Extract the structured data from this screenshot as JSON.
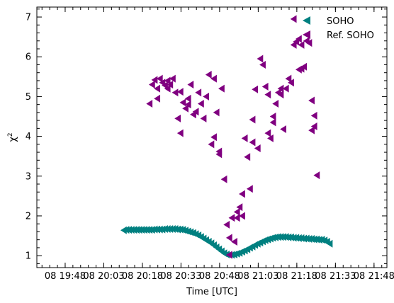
{
  "chart_data": {
    "type": "scatter",
    "title": "",
    "xlabel": "Time [UTC]",
    "ylabel": "χ",
    "ylabel_superscript": "2",
    "xlim": [
      "19:37",
      "21:53"
    ],
    "ylim": [
      0.7,
      7.25
    ],
    "x_tick_labels": [
      "08 19:48",
      "08 20:03",
      "08 20:18",
      "08 20:33",
      "08 20:48",
      "08 21:03",
      "08 21:18",
      "08 21:33",
      "08 21:48"
    ],
    "y_tick_labels": [
      "1",
      "2",
      "3",
      "4",
      "5",
      "6",
      "7"
    ],
    "legend_position": "top-right",
    "series": [
      {
        "name": "SOHO",
        "color": "#008080",
        "marker": "triangle-left",
        "points": [
          [
            "20:11",
            1.64
          ],
          [
            "20:12",
            1.65
          ],
          [
            "20:13",
            1.65
          ],
          [
            "20:14",
            1.65
          ],
          [
            "20:15",
            1.65
          ],
          [
            "20:16",
            1.65
          ],
          [
            "20:17",
            1.65
          ],
          [
            "20:18",
            1.65
          ],
          [
            "20:19",
            1.65
          ],
          [
            "20:20",
            1.65
          ],
          [
            "20:21",
            1.65
          ],
          [
            "20:22",
            1.65
          ],
          [
            "20:23",
            1.66
          ],
          [
            "20:24",
            1.66
          ],
          [
            "20:25",
            1.66
          ],
          [
            "20:26",
            1.66
          ],
          [
            "20:27",
            1.67
          ],
          [
            "20:28",
            1.67
          ],
          [
            "20:29",
            1.67
          ],
          [
            "20:30",
            1.67
          ],
          [
            "20:31",
            1.67
          ],
          [
            "20:32",
            1.66
          ],
          [
            "20:33",
            1.66
          ],
          [
            "20:34",
            1.65
          ],
          [
            "20:35",
            1.63
          ],
          [
            "20:36",
            1.61
          ],
          [
            "20:37",
            1.59
          ],
          [
            "20:38",
            1.57
          ],
          [
            "20:39",
            1.54
          ],
          [
            "20:40",
            1.51
          ],
          [
            "20:41",
            1.47
          ],
          [
            "20:42",
            1.43
          ],
          [
            "20:43",
            1.39
          ],
          [
            "20:44",
            1.35
          ],
          [
            "20:45",
            1.31
          ],
          [
            "20:46",
            1.26
          ],
          [
            "20:47",
            1.21
          ],
          [
            "20:48",
            1.16
          ],
          [
            "20:49",
            1.11
          ],
          [
            "20:50",
            1.06
          ],
          [
            "20:51",
            1.03
          ],
          [
            "20:52",
            1.02
          ],
          [
            "20:53",
            1.02
          ],
          [
            "20:54",
            1.03
          ],
          [
            "20:55",
            1.05
          ],
          [
            "20:56",
            1.07
          ],
          [
            "20:57",
            1.1
          ],
          [
            "20:58",
            1.13
          ],
          [
            "20:59",
            1.16
          ],
          [
            "21:00",
            1.2
          ],
          [
            "21:01",
            1.23
          ],
          [
            "21:02",
            1.27
          ],
          [
            "21:03",
            1.3
          ],
          [
            "21:04",
            1.33
          ],
          [
            "21:05",
            1.36
          ],
          [
            "21:06",
            1.39
          ],
          [
            "21:07",
            1.41
          ],
          [
            "21:08",
            1.43
          ],
          [
            "21:09",
            1.45
          ],
          [
            "21:10",
            1.46
          ],
          [
            "21:11",
            1.47
          ],
          [
            "21:12",
            1.47
          ],
          [
            "21:13",
            1.47
          ],
          [
            "21:14",
            1.47
          ],
          [
            "21:15",
            1.46
          ],
          [
            "21:16",
            1.46
          ],
          [
            "21:17",
            1.45
          ],
          [
            "21:18",
            1.45
          ],
          [
            "21:19",
            1.44
          ],
          [
            "21:20",
            1.44
          ],
          [
            "21:21",
            1.43
          ],
          [
            "21:22",
            1.43
          ],
          [
            "21:23",
            1.42
          ],
          [
            "21:24",
            1.42
          ],
          [
            "21:25",
            1.41
          ],
          [
            "21:26",
            1.41
          ],
          [
            "21:27",
            1.4
          ],
          [
            "21:28",
            1.4
          ],
          [
            "21:29",
            1.38
          ],
          [
            "21:30",
            1.35
          ],
          [
            "21:31",
            1.3
          ]
        ]
      },
      {
        "name": "Ref. SOHO",
        "color": "#800080",
        "marker": "triangle-left",
        "points": [
          [
            "20:21",
            4.82
          ],
          [
            "20:22",
            5.3
          ],
          [
            "20:23",
            5.42
          ],
          [
            "20:24",
            5.2
          ],
          [
            "20:24",
            4.95
          ],
          [
            "20:25",
            5.45
          ],
          [
            "20:26",
            5.35
          ],
          [
            "20:27",
            5.28
          ],
          [
            "20:28",
            5.4
          ],
          [
            "20:28",
            5.2
          ],
          [
            "20:29",
            5.3
          ],
          [
            "20:30",
            5.45
          ],
          [
            "20:31",
            5.1
          ],
          [
            "20:32",
            4.45
          ],
          [
            "20:33",
            4.08
          ],
          [
            "20:33",
            5.12
          ],
          [
            "20:34",
            4.85
          ],
          [
            "20:35",
            4.7
          ],
          [
            "20:36",
            4.8
          ],
          [
            "20:36",
            4.95
          ],
          [
            "20:37",
            5.3
          ],
          [
            "20:38",
            4.55
          ],
          [
            "20:39",
            4.62
          ],
          [
            "20:40",
            5.1
          ],
          [
            "20:41",
            4.82
          ],
          [
            "20:42",
            4.45
          ],
          [
            "20:43",
            5.0
          ],
          [
            "20:44",
            5.55
          ],
          [
            "20:45",
            3.8
          ],
          [
            "20:46",
            5.45
          ],
          [
            "20:46",
            3.98
          ],
          [
            "20:47",
            4.6
          ],
          [
            "20:48",
            3.62
          ],
          [
            "20:48",
            3.55
          ],
          [
            "20:49",
            5.2
          ],
          [
            "20:50",
            2.92
          ],
          [
            "20:51",
            1.78
          ],
          [
            "20:52",
            1.45
          ],
          [
            "20:52",
            1.02
          ],
          [
            "20:53",
            1.95
          ],
          [
            "20:54",
            1.35
          ],
          [
            "20:55",
            2.1
          ],
          [
            "20:55",
            1.95
          ],
          [
            "20:56",
            2.22
          ],
          [
            "20:57",
            2.0
          ],
          [
            "20:57",
            2.55
          ],
          [
            "20:58",
            3.95
          ],
          [
            "20:59",
            3.48
          ],
          [
            "21:00",
            2.68
          ],
          [
            "21:01",
            3.85
          ],
          [
            "21:01",
            4.42
          ],
          [
            "21:02",
            5.18
          ],
          [
            "21:03",
            3.7
          ],
          [
            "21:04",
            5.95
          ],
          [
            "21:05",
            5.8
          ],
          [
            "21:06",
            5.25
          ],
          [
            "21:07",
            5.05
          ],
          [
            "21:07",
            4.08
          ],
          [
            "21:08",
            3.95
          ],
          [
            "21:09",
            4.35
          ],
          [
            "21:09",
            4.5
          ],
          [
            "21:10",
            4.82
          ],
          [
            "21:11",
            5.1
          ],
          [
            "21:12",
            5.2
          ],
          [
            "21:12",
            5.05
          ],
          [
            "21:13",
            4.18
          ],
          [
            "21:14",
            5.2
          ],
          [
            "21:15",
            5.45
          ],
          [
            "21:16",
            5.35
          ],
          [
            "21:17",
            6.3
          ],
          [
            "21:17",
            6.95
          ],
          [
            "21:18",
            6.38
          ],
          [
            "21:19",
            6.45
          ],
          [
            "21:19",
            5.68
          ],
          [
            "21:20",
            6.3
          ],
          [
            "21:20",
            5.7
          ],
          [
            "21:21",
            5.75
          ],
          [
            "21:22",
            6.4
          ],
          [
            "21:23",
            6.35
          ],
          [
            "21:24",
            4.15
          ],
          [
            "21:24",
            4.9
          ],
          [
            "21:25",
            4.52
          ],
          [
            "21:25",
            4.25
          ],
          [
            "21:26",
            3.02
          ]
        ]
      }
    ]
  }
}
